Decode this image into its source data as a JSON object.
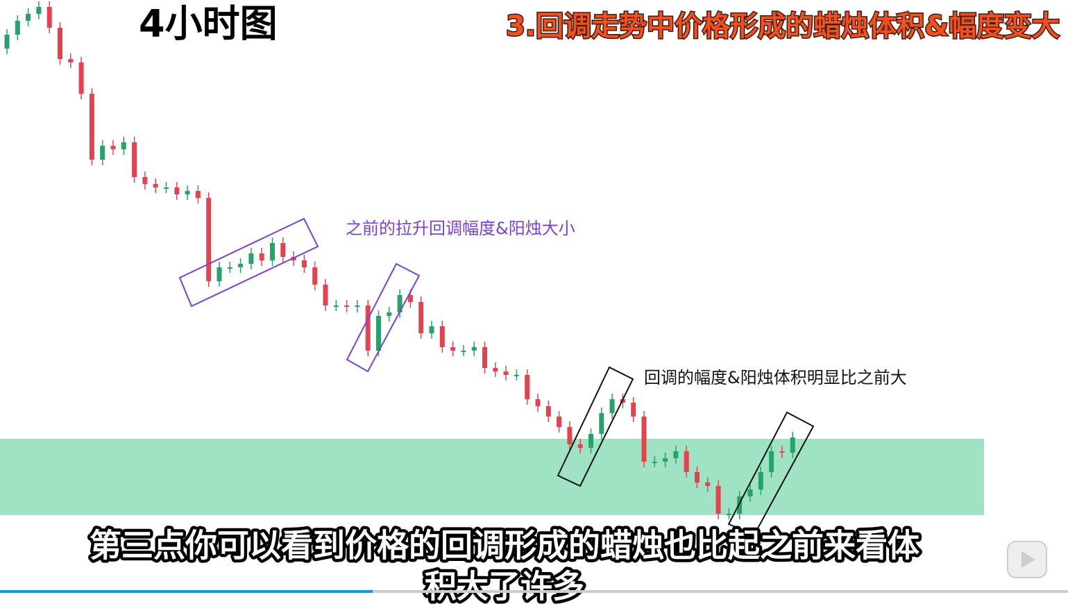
{
  "chart_data": {
    "type": "candlestick",
    "title": "4小时图",
    "subtitle": "3.回调走势中价格形成的蜡烛体积&幅度变大",
    "annotations": [
      "之前的拉升回调幅度&阳烛大小",
      "回调的幅度&阳烛体积明显比之前大"
    ],
    "captions": [
      "第三点你可以看到价格的回调形成的蜡烛也比起之前来看体",
      "积大了许多"
    ],
    "ylim": [
      0,
      870
    ],
    "up_color": "#26a26a",
    "down_color": "#e2434f",
    "zone": {
      "range": [
        128,
        238
      ],
      "color": "#9fe3c4"
    },
    "open": [
      800,
      820,
      840,
      850,
      860,
      830,
      785,
      780,
      735,
      640,
      660,
      655,
      665,
      615,
      605,
      600,
      600,
      590,
      595,
      585,
      465,
      485,
      485,
      490,
      505,
      495,
      520,
      500,
      495,
      485,
      460,
      430,
      430,
      428,
      430,
      365,
      415,
      420,
      445,
      435,
      390,
      400,
      370,
      365,
      365,
      370,
      340,
      335,
      330,
      330,
      295,
      285,
      270,
      255,
      230,
      225,
      245,
      275,
      295,
      290,
      270,
      205,
      205,
      210,
      220,
      190,
      175,
      170,
      130,
      130,
      155,
      165,
      190,
      220,
      218
    ],
    "high": [
      828,
      848,
      858,
      868,
      868,
      838,
      793,
      788,
      743,
      668,
      668,
      673,
      673,
      623,
      613,
      608,
      608,
      603,
      603,
      593,
      493,
      493,
      498,
      513,
      513,
      528,
      528,
      508,
      503,
      493,
      468,
      438,
      438,
      438,
      438,
      423,
      428,
      453,
      453,
      443,
      408,
      408,
      378,
      373,
      378,
      378,
      348,
      343,
      338,
      338,
      303,
      293,
      278,
      263,
      238,
      253,
      283,
      303,
      303,
      298,
      278,
      213,
      218,
      228,
      228,
      198,
      183,
      178,
      138,
      163,
      173,
      198,
      228,
      228,
      248
    ],
    "low": [
      792,
      812,
      832,
      842,
      822,
      777,
      772,
      727,
      632,
      632,
      647,
      647,
      607,
      597,
      592,
      592,
      582,
      582,
      577,
      457,
      457,
      477,
      477,
      482,
      487,
      487,
      492,
      487,
      477,
      452,
      422,
      422,
      420,
      420,
      357,
      357,
      407,
      412,
      427,
      382,
      382,
      362,
      357,
      357,
      357,
      332,
      327,
      322,
      322,
      287,
      277,
      262,
      247,
      222,
      217,
      217,
      237,
      267,
      282,
      262,
      197,
      197,
      197,
      202,
      182,
      167,
      162,
      122,
      122,
      122,
      147,
      157,
      182,
      210,
      210
    ],
    "close": [
      820,
      840,
      850,
      860,
      830,
      785,
      780,
      735,
      640,
      660,
      655,
      665,
      615,
      605,
      600,
      600,
      590,
      595,
      585,
      465,
      485,
      485,
      490,
      505,
      495,
      520,
      500,
      495,
      485,
      460,
      430,
      430,
      428,
      430,
      365,
      415,
      420,
      445,
      435,
      390,
      400,
      370,
      365,
      365,
      370,
      340,
      335,
      330,
      330,
      295,
      285,
      270,
      255,
      230,
      225,
      245,
      275,
      295,
      290,
      270,
      205,
      205,
      210,
      220,
      190,
      175,
      170,
      130,
      130,
      155,
      165,
      190,
      220,
      218,
      240
    ]
  }
}
